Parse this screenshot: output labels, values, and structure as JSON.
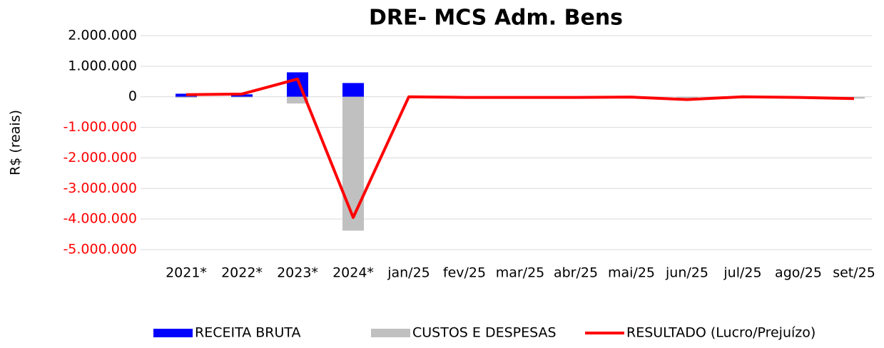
{
  "chart_data": {
    "type": "bar_line",
    "title": "DRE- MCS Adm. Bens",
    "y_label": "R$ (reais)",
    "categories": [
      "2021*",
      "2022*",
      "2023*",
      "2024*",
      "jan/25",
      "fev/25",
      "mar/25",
      "abr/25",
      "mai/25",
      "jun/25",
      "jul/25",
      "ago/25",
      "set/25"
    ],
    "series": [
      {
        "name": "RECEITA BRUTA",
        "type": "bar",
        "color": "#0000ff",
        "values": [
          100000,
          80000,
          800000,
          450000,
          0,
          0,
          0,
          0,
          0,
          0,
          0,
          0,
          0
        ]
      },
      {
        "name": "CUSTOS E DESPESAS",
        "type": "bar",
        "color": "#c0c0c0",
        "values": [
          -30000,
          -20000,
          -220000,
          -4380000,
          0,
          -20000,
          -20000,
          -20000,
          -10000,
          -90000,
          0,
          -20000,
          -60000
        ]
      },
      {
        "name": "RESULTADO (Lucro/Prejuízo)",
        "type": "line",
        "color": "#ff0000",
        "values": [
          70000,
          90000,
          580000,
          -3950000,
          0,
          -20000,
          -20000,
          -20000,
          -10000,
          -90000,
          0,
          -20000,
          -60000
        ]
      }
    ],
    "ylim": [
      -5000000,
      2000000
    ],
    "yticks": [
      {
        "value": -5000000,
        "label": "-5.000.000"
      },
      {
        "value": -4000000,
        "label": "-4.000.000"
      },
      {
        "value": -3000000,
        "label": "-3.000.000"
      },
      {
        "value": -2000000,
        "label": "-2.000.000"
      },
      {
        "value": -1000000,
        "label": "-1.000.000"
      },
      0,
      {
        "value": 1000000,
        "label": "1.000.000"
      },
      {
        "value": 2000000,
        "label": "2.000.000"
      }
    ],
    "negative_tick_color": "#ff0000",
    "grid": true,
    "legend": "bottom"
  }
}
